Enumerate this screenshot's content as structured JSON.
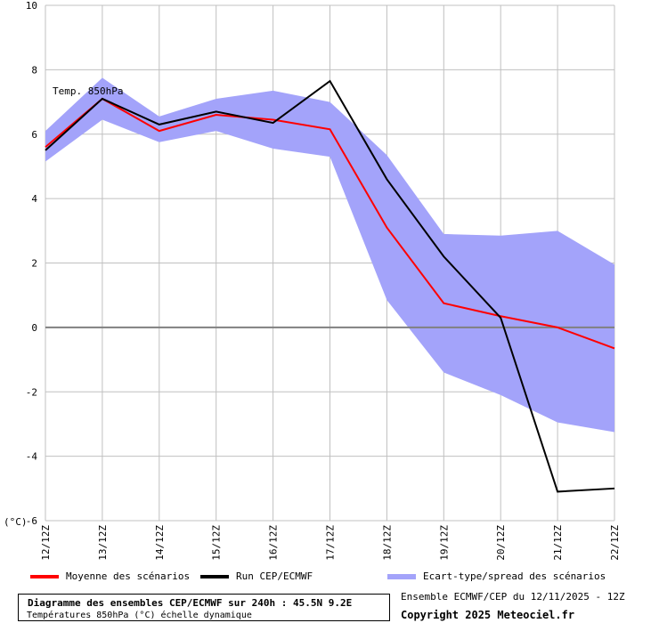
{
  "chart_data": {
    "type": "line",
    "ylabel": "(°C)",
    "annotation": "Temp. 850hPa",
    "categories": [
      "12/12Z",
      "13/12Z",
      "14/12Z",
      "15/12Z",
      "16/12Z",
      "17/12Z",
      "18/12Z",
      "19/12Z",
      "20/12Z",
      "21/12Z",
      "22/12Z"
    ],
    "ylim": [
      -6,
      10
    ],
    "yticks": [
      10,
      8,
      6,
      4,
      2,
      0,
      -2,
      -4,
      -6
    ],
    "grid": true,
    "zero_line": true,
    "series": [
      {
        "name": "Moyenne des scénarios",
        "color": "#ff0000",
        "values": [
          5.6,
          7.1,
          6.1,
          6.6,
          6.45,
          6.15,
          3.1,
          0.75,
          0.35,
          0.0,
          -0.65
        ]
      },
      {
        "name": "Run CEP/ECMWF",
        "color": "#000000",
        "values": [
          5.5,
          7.1,
          6.3,
          6.7,
          6.35,
          7.65,
          4.6,
          2.2,
          0.3,
          -5.1,
          -5.0
        ]
      }
    ],
    "spread": {
      "name": "Ecart-type/spread des scénarios",
      "color": "#a3a3fa",
      "upper": [
        6.1,
        7.75,
        6.55,
        7.1,
        7.35,
        7.0,
        5.35,
        2.9,
        2.85,
        3.0,
        1.95
      ],
      "lower": [
        5.15,
        6.45,
        5.75,
        6.1,
        5.55,
        5.3,
        0.85,
        -1.4,
        -2.1,
        -2.95,
        -3.25
      ]
    }
  },
  "legend": {
    "mean_label": "Moyenne des scénarios",
    "run_label": "Run CEP/ECMWF",
    "spread_label": "Ecart-type/spread des scénarios"
  },
  "footer": {
    "title": "Diagramme des ensembles CEP/ECMWF sur 240h : 45.5N 9.2E",
    "subtitle": "Températures 850hPa (°C) échelle dynamique",
    "ensemble_info": "Ensemble ECMWF/CEP du 12/11/2025 - 12Z",
    "copyright": "Copyright 2025 Meteociel.fr"
  },
  "colors": {
    "mean": "#ff0000",
    "run": "#000000",
    "spread": "#a3a3fa",
    "grid": "#c0c0c0",
    "zero_line": "#808080"
  }
}
